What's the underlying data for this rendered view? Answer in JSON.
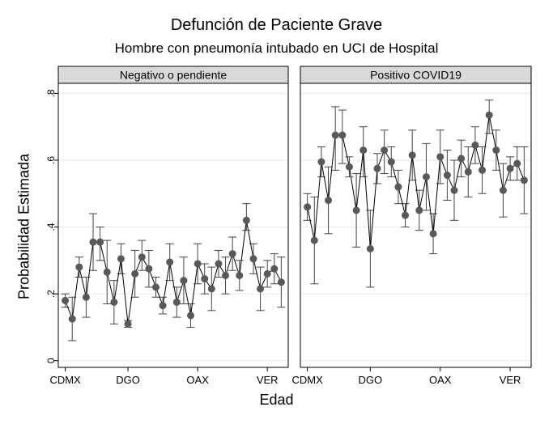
{
  "chart_data": {
    "type": "scatter",
    "title": "Defunción de Paciente Grave",
    "subtitle": "Hombre con pneumonía intubado en UCI de Hospital",
    "xlabel": "Edad",
    "ylabel": "Probabilidad Estimada",
    "ylim": [
      -0.02,
      0.83
    ],
    "yticks": [
      {
        "value": 0,
        "label": "0"
      },
      {
        "value": 0.2,
        "label": ".2"
      },
      {
        "value": 0.4,
        "label": ".4"
      },
      {
        "value": 0.6,
        "label": ".6"
      },
      {
        "value": 0.8,
        "label": ".8"
      }
    ],
    "xlim": [
      0,
      33
    ],
    "xticks": [
      {
        "index": 1,
        "label": "CDMX"
      },
      {
        "index": 10,
        "label": "DGO"
      },
      {
        "index": 20,
        "label": "OAX"
      },
      {
        "index": 30,
        "label": "VER"
      }
    ],
    "grid": "horizontal",
    "colors": {
      "marker": "#595959",
      "line": "#000000",
      "panel_header": "#d9d9d9",
      "gridline": "#eaeaea"
    },
    "panels": [
      {
        "label": "Negativo o pendiente",
        "points": [
          {
            "x": 1,
            "y": 0.18,
            "lo": 0.16,
            "hi": 0.2
          },
          {
            "x": 2,
            "y": 0.125,
            "lo": 0.06,
            "hi": 0.19
          },
          {
            "x": 3,
            "y": 0.28,
            "lo": 0.25,
            "hi": 0.31
          },
          {
            "x": 4,
            "y": 0.19,
            "lo": 0.13,
            "hi": 0.25
          },
          {
            "x": 5,
            "y": 0.355,
            "lo": 0.27,
            "hi": 0.44
          },
          {
            "x": 6,
            "y": 0.355,
            "lo": 0.3,
            "hi": 0.4
          },
          {
            "x": 7,
            "y": 0.265,
            "lo": 0.17,
            "hi": 0.36
          },
          {
            "x": 8,
            "y": 0.175,
            "lo": 0.11,
            "hi": 0.24
          },
          {
            "x": 9,
            "y": 0.305,
            "lo": 0.26,
            "hi": 0.35
          },
          {
            "x": 10,
            "y": 0.11,
            "lo": 0.1,
            "hi": 0.12
          },
          {
            "x": 11,
            "y": 0.26,
            "lo": 0.19,
            "hi": 0.33
          },
          {
            "x": 12,
            "y": 0.31,
            "lo": 0.27,
            "hi": 0.36
          },
          {
            "x": 13,
            "y": 0.275,
            "lo": 0.22,
            "hi": 0.33
          },
          {
            "x": 14,
            "y": 0.22,
            "lo": 0.19,
            "hi": 0.25
          },
          {
            "x": 15,
            "y": 0.165,
            "lo": 0.14,
            "hi": 0.19
          },
          {
            "x": 16,
            "y": 0.295,
            "lo": 0.24,
            "hi": 0.35
          },
          {
            "x": 17,
            "y": 0.175,
            "lo": 0.13,
            "hi": 0.22
          },
          {
            "x": 18,
            "y": 0.24,
            "lo": 0.17,
            "hi": 0.31
          },
          {
            "x": 19,
            "y": 0.135,
            "lo": 0.1,
            "hi": 0.17
          },
          {
            "x": 20,
            "y": 0.29,
            "lo": 0.23,
            "hi": 0.35
          },
          {
            "x": 21,
            "y": 0.245,
            "lo": 0.2,
            "hi": 0.29
          },
          {
            "x": 22,
            "y": 0.215,
            "lo": 0.15,
            "hi": 0.28
          },
          {
            "x": 23,
            "y": 0.29,
            "lo": 0.25,
            "hi": 0.33
          },
          {
            "x": 24,
            "y": 0.255,
            "lo": 0.2,
            "hi": 0.31
          },
          {
            "x": 25,
            "y": 0.32,
            "lo": 0.27,
            "hi": 0.37
          },
          {
            "x": 26,
            "y": 0.255,
            "lo": 0.21,
            "hi": 0.3
          },
          {
            "x": 27,
            "y": 0.42,
            "lo": 0.39,
            "hi": 0.47
          },
          {
            "x": 28,
            "y": 0.305,
            "lo": 0.26,
            "hi": 0.35
          },
          {
            "x": 29,
            "y": 0.215,
            "lo": 0.15,
            "hi": 0.28
          },
          {
            "x": 30,
            "y": 0.26,
            "lo": 0.22,
            "hi": 0.3
          },
          {
            "x": 31,
            "y": 0.275,
            "lo": 0.23,
            "hi": 0.32
          },
          {
            "x": 32,
            "y": 0.235,
            "lo": 0.16,
            "hi": 0.31
          }
        ]
      },
      {
        "label": "Positivo COVID19",
        "points": [
          {
            "x": 1,
            "y": 0.46,
            "lo": 0.42,
            "hi": 0.5
          },
          {
            "x": 2,
            "y": 0.36,
            "lo": 0.23,
            "hi": 0.49
          },
          {
            "x": 3,
            "y": 0.595,
            "lo": 0.55,
            "hi": 0.64
          },
          {
            "x": 4,
            "y": 0.48,
            "lo": 0.38,
            "hi": 0.58
          },
          {
            "x": 5,
            "y": 0.675,
            "lo": 0.57,
            "hi": 0.76
          },
          {
            "x": 6,
            "y": 0.675,
            "lo": 0.59,
            "hi": 0.75
          },
          {
            "x": 7,
            "y": 0.58,
            "lo": 0.55,
            "hi": 0.61
          },
          {
            "x": 8,
            "y": 0.45,
            "lo": 0.34,
            "hi": 0.56
          },
          {
            "x": 9,
            "y": 0.63,
            "lo": 0.55,
            "hi": 0.7
          },
          {
            "x": 10,
            "y": 0.335,
            "lo": 0.22,
            "hi": 0.45
          },
          {
            "x": 11,
            "y": 0.575,
            "lo": 0.53,
            "hi": 0.62
          },
          {
            "x": 12,
            "y": 0.63,
            "lo": 0.56,
            "hi": 0.69
          },
          {
            "x": 13,
            "y": 0.595,
            "lo": 0.55,
            "hi": 0.64
          },
          {
            "x": 14,
            "y": 0.52,
            "lo": 0.47,
            "hi": 0.57
          },
          {
            "x": 15,
            "y": 0.435,
            "lo": 0.4,
            "hi": 0.47
          },
          {
            "x": 16,
            "y": 0.615,
            "lo": 0.54,
            "hi": 0.69
          },
          {
            "x": 17,
            "y": 0.45,
            "lo": 0.39,
            "hi": 0.51
          },
          {
            "x": 18,
            "y": 0.55,
            "lo": 0.45,
            "hi": 0.65
          },
          {
            "x": 19,
            "y": 0.38,
            "lo": 0.32,
            "hi": 0.44
          },
          {
            "x": 20,
            "y": 0.61,
            "lo": 0.53,
            "hi": 0.69
          },
          {
            "x": 21,
            "y": 0.555,
            "lo": 0.48,
            "hi": 0.63
          },
          {
            "x": 22,
            "y": 0.51,
            "lo": 0.42,
            "hi": 0.6
          },
          {
            "x": 23,
            "y": 0.605,
            "lo": 0.55,
            "hi": 0.66
          },
          {
            "x": 24,
            "y": 0.565,
            "lo": 0.49,
            "hi": 0.64
          },
          {
            "x": 25,
            "y": 0.645,
            "lo": 0.59,
            "hi": 0.7
          },
          {
            "x": 26,
            "y": 0.57,
            "lo": 0.5,
            "hi": 0.64
          },
          {
            "x": 27,
            "y": 0.735,
            "lo": 0.68,
            "hi": 0.78
          },
          {
            "x": 28,
            "y": 0.63,
            "lo": 0.57,
            "hi": 0.69
          },
          {
            "x": 29,
            "y": 0.51,
            "lo": 0.43,
            "hi": 0.59
          },
          {
            "x": 30,
            "y": 0.575,
            "lo": 0.54,
            "hi": 0.61
          },
          {
            "x": 31,
            "y": 0.59,
            "lo": 0.54,
            "hi": 0.64
          },
          {
            "x": 32,
            "y": 0.54,
            "lo": 0.44,
            "hi": 0.64
          }
        ]
      }
    ]
  }
}
